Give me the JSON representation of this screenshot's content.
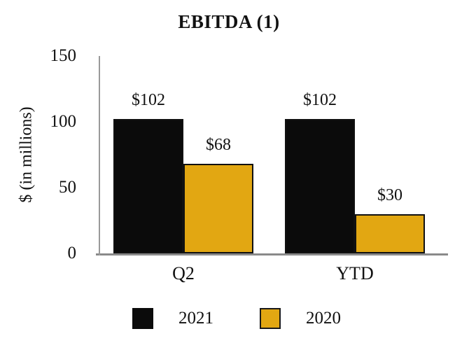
{
  "chart_data": {
    "type": "bar",
    "title": "EBITDA (1)",
    "ylabel": "$ (in millions)",
    "xlabel": "",
    "categories": [
      "Q2",
      "YTD"
    ],
    "series": [
      {
        "name": "2021",
        "color": "#0b0b0b",
        "values": [
          102,
          102
        ],
        "data_labels": [
          "$102",
          "$102"
        ],
        "swatch_border": false
      },
      {
        "name": "2020",
        "color": "#e2a712",
        "values": [
          68,
          30
        ],
        "data_labels": [
          "$68",
          "$30"
        ],
        "swatch_border": true
      }
    ],
    "ylim": [
      0,
      150
    ],
    "yticks": [
      0,
      50,
      100,
      150
    ],
    "grid": false,
    "legend_position": "bottom",
    "axis_color": "#8a8a8a",
    "background_color": "#ffffff",
    "value_prefix": "$"
  }
}
